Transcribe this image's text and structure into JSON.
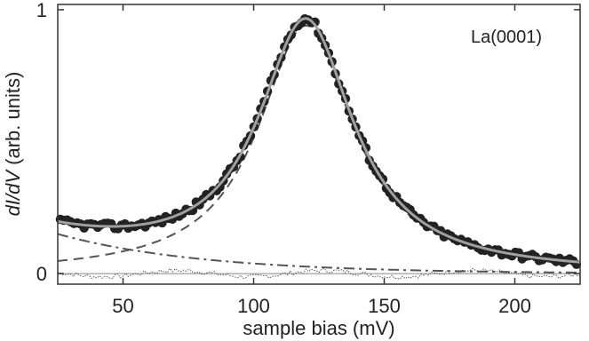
{
  "chart_data": {
    "type": "scatter",
    "title": "",
    "annotation": "La(0001)",
    "xlabel": "sample bias (mV)",
    "ylabel_parts": [
      {
        "text": "dI/dV",
        "italic": true
      },
      {
        "text": " (arb. units)",
        "italic": false
      }
    ],
    "xlim": [
      25,
      225
    ],
    "ylim": [
      -0.04,
      1.02
    ],
    "xticks": [
      50,
      100,
      150,
      200
    ],
    "xtick_labels": [
      "50",
      "100",
      "150",
      "200"
    ],
    "yticks": [
      0,
      1
    ],
    "ytick_labels": [
      "0",
      "1"
    ],
    "grid": false,
    "legend": "none",
    "model": {
      "lorentzian": {
        "center": 120,
        "half_width": 22,
        "amplitude": 0.94
      },
      "background": {
        "type": "exponential",
        "y_at_x_min": 0.15,
        "decay_mV": 55
      }
    },
    "series": [
      {
        "role": "data",
        "style": "thick-dots",
        "color": "#222222"
      },
      {
        "role": "total-fit",
        "style": "solid",
        "color": "#a0a0a0"
      },
      {
        "role": "peak-component",
        "style": "dashed",
        "color": "#555555"
      },
      {
        "role": "background-component",
        "style": "dash-dot",
        "color": "#555555"
      },
      {
        "role": "residual",
        "style": "dotted",
        "color": "#555555"
      },
      {
        "role": "zero-line",
        "style": "thin-solid",
        "color": "#888888"
      }
    ]
  }
}
